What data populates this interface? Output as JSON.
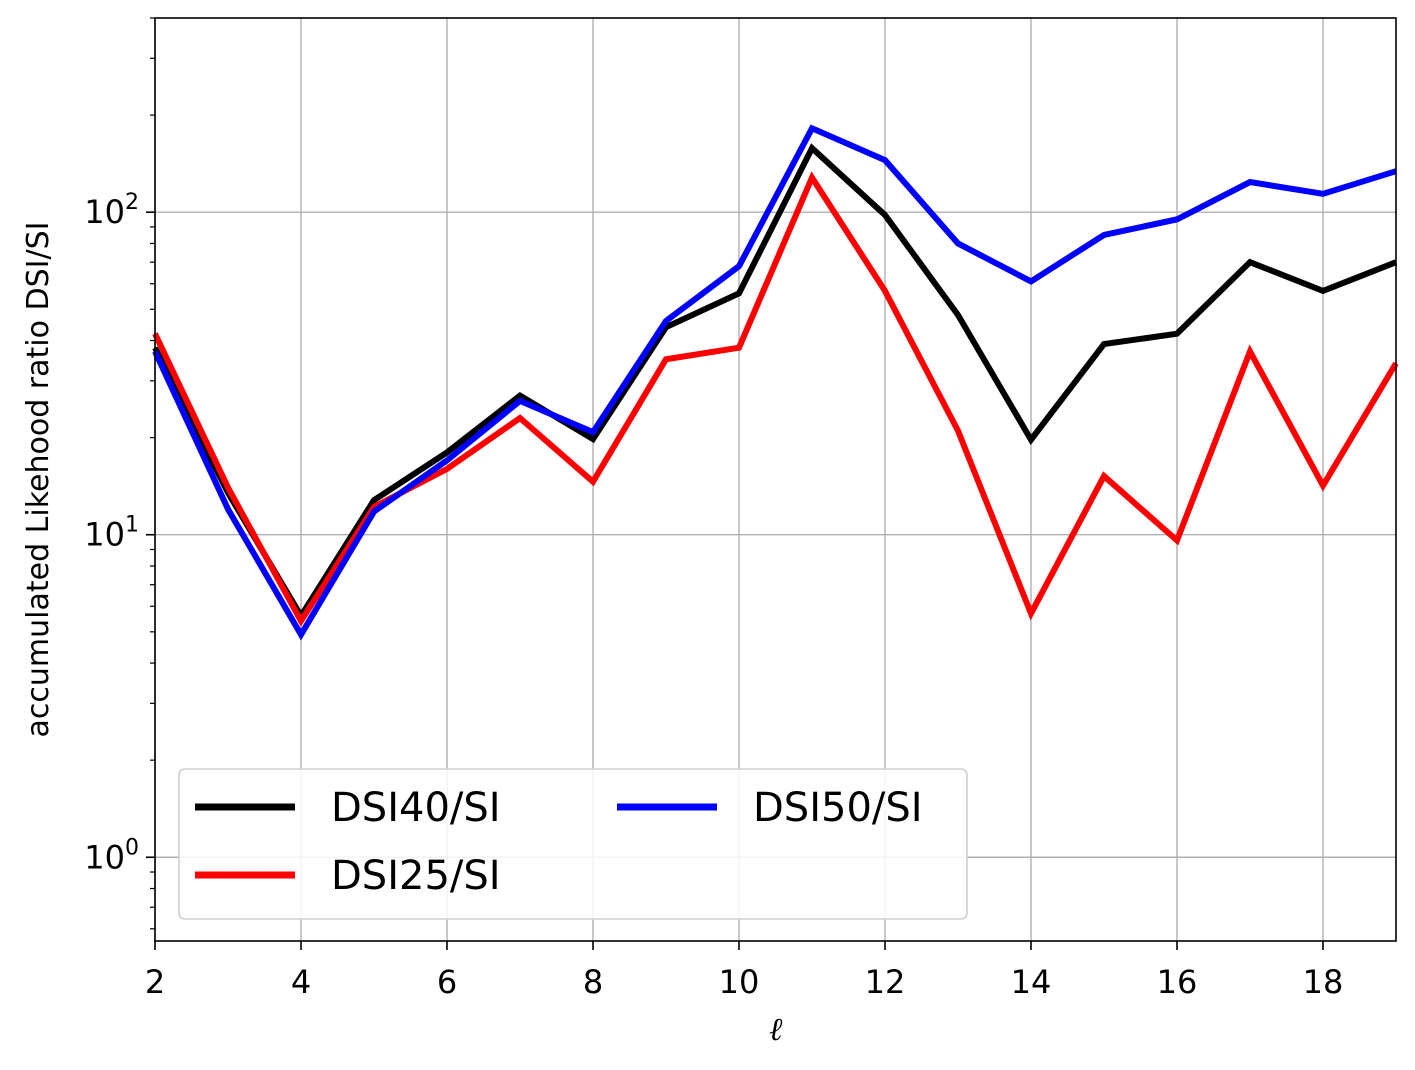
{
  "chart_data": {
    "type": "line",
    "xlabel": "ℓ",
    "ylabel": "accumulated Likehood ratio DSI/SI",
    "xlim": [
      2,
      19
    ],
    "ylim": [
      0.55,
      400
    ],
    "yscale": "log",
    "grid": true,
    "legend_position": "lower-left",
    "legend_columns": 2,
    "x_ticks": [
      2,
      4,
      6,
      8,
      10,
      12,
      14,
      16,
      18
    ],
    "x_tick_labels": [
      "2",
      "4",
      "6",
      "8",
      "10",
      "12",
      "14",
      "16",
      "18"
    ],
    "y_ticks": [
      1,
      10,
      100
    ],
    "y_tick_labels": [
      {
        "base": "10",
        "exp": "0"
      },
      {
        "base": "10",
        "exp": "1"
      },
      {
        "base": "10",
        "exp": "2"
      }
    ],
    "x": [
      2,
      3,
      4,
      5,
      6,
      7,
      8,
      9,
      10,
      11,
      12,
      13,
      14,
      15,
      16,
      17,
      18,
      19
    ],
    "series": [
      {
        "name": "DSI40/SI",
        "color": "#000000",
        "values": [
          38,
          13.5,
          5.6,
          12.8,
          18,
          27,
          19.8,
          44,
          56,
          158,
          98,
          48,
          19.7,
          39,
          42,
          70,
          57,
          70
        ]
      },
      {
        "name": "DSI25/SI",
        "color": "#ff0000",
        "values": [
          42,
          14,
          5.4,
          12.2,
          16,
          23,
          14.6,
          35,
          38,
          128,
          57,
          21,
          5.7,
          15.2,
          9.6,
          37,
          14.2,
          34
        ]
      },
      {
        "name": "DSI50/SI",
        "color": "#0000ff",
        "values": [
          37,
          12,
          4.9,
          11.8,
          17,
          26,
          20.8,
          46,
          68,
          182,
          145,
          80,
          61,
          85,
          95,
          124,
          114,
          134
        ]
      }
    ]
  }
}
